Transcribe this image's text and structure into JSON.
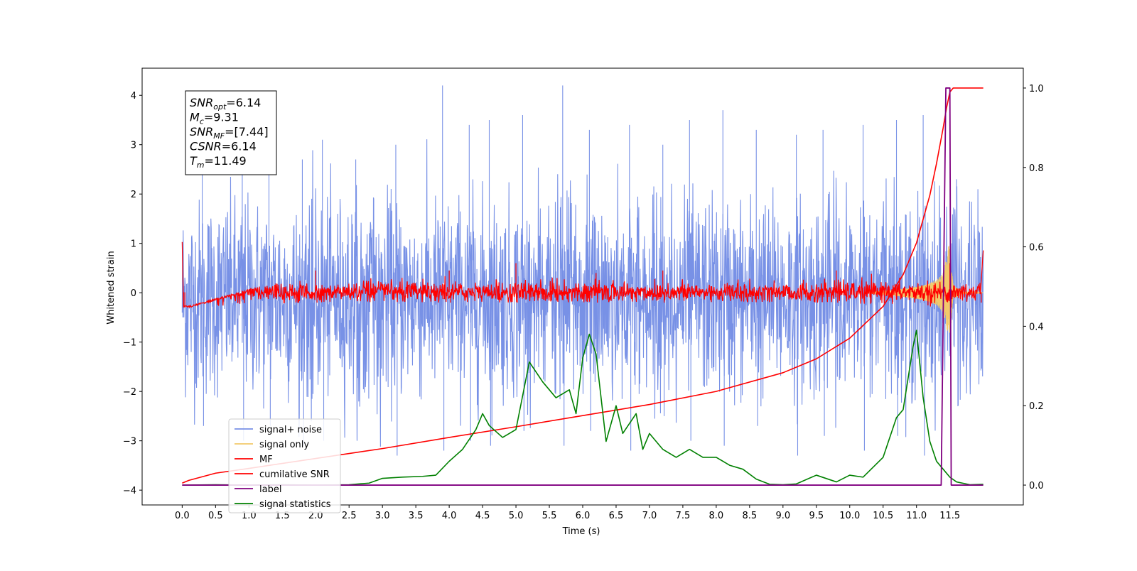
{
  "chart_data": {
    "type": "line",
    "xlabel": "Time (s)",
    "ylabel_left": "Whitened strain",
    "ylabel_right": "",
    "xlim": [
      -0.6,
      12.6
    ],
    "ylim_left": [
      -4.3,
      4.55
    ],
    "ylim_right": [
      -0.05,
      1.05
    ],
    "grid": false,
    "legend_position": "lower-left",
    "x_ticks": [
      0.0,
      0.5,
      1.0,
      1.5,
      2.0,
      2.5,
      3.0,
      3.5,
      4.0,
      4.5,
      5.0,
      5.5,
      6.0,
      6.5,
      7.0,
      7.5,
      8.0,
      8.5,
      9.0,
      9.5,
      10.0,
      10.5,
      11.0,
      11.5
    ],
    "x_tick_labels": [
      "0.0",
      "0.5",
      "1.0",
      "1.5",
      "2.0",
      "2.5",
      "3.0",
      "3.5",
      "4.0",
      "4.5",
      "5.0",
      "5.5",
      "6.0",
      "6.5",
      "7.0",
      "7.5",
      "8.0",
      "8.5",
      "9.0",
      "9.5",
      "10.0",
      "10.5",
      "11.0",
      "11.5"
    ],
    "y_left_ticks": [
      -4,
      -3,
      -2,
      -1,
      0,
      1,
      2,
      3,
      4
    ],
    "y_left_tick_labels": [
      "−4",
      "−3",
      "−2",
      "−1",
      "0",
      "1",
      "2",
      "3",
      "4"
    ],
    "y_right_ticks": [
      0.0,
      0.2,
      0.4,
      0.6,
      0.8,
      1.0
    ],
    "y_right_tick_labels": [
      "0.0",
      "0.2",
      "0.4",
      "0.6",
      "0.8",
      "1.0"
    ],
    "annotation": {
      "lines": [
        {
          "main": "SNR",
          "sub": "opt",
          "value": "=6.14"
        },
        {
          "main": "M",
          "sub": "c",
          "value": "=9.31"
        },
        {
          "main": "SNR",
          "sub": "MF",
          "value": "=[7.44]"
        },
        {
          "main": "CSNR",
          "sub": "",
          "value": "=6.14"
        },
        {
          "main": "T",
          "sub": "m",
          "value": "=11.49"
        }
      ]
    },
    "series": [
      {
        "name": "signal+ noise",
        "axis": "left",
        "color": "#7891e6",
        "render": "noise-band",
        "x_range": [
          0.0,
          12.0
        ],
        "typical_range": [
          -1.5,
          1.3
        ],
        "x": [
          0.3,
          0.9,
          1.3,
          1.8,
          2.1,
          2.6,
          3.2,
          3.9,
          4.3,
          4.6,
          5.1,
          5.7,
          6.1,
          6.7,
          7.2,
          7.6,
          8.1,
          8.6,
          9.2,
          9.6,
          10.2,
          10.7,
          11.1,
          11.6
        ],
        "high": [
          2.7,
          3.4,
          2.8,
          2.7,
          3.1,
          2.7,
          3.0,
          4.2,
          3.4,
          3.5,
          3.6,
          4.2,
          3.3,
          3.4,
          3.0,
          3.5,
          3.7,
          3.3,
          3.2,
          3.3,
          3.4,
          3.5,
          3.6,
          2.3
        ],
        "low": [
          -2.7,
          -3.0,
          -2.7,
          -3.1,
          -3.0,
          -3.0,
          -3.3,
          -3.2,
          -3.0,
          -3.1,
          -2.8,
          -3.1,
          -2.8,
          -3.2,
          -2.5,
          -3.0,
          -3.1,
          -2.7,
          -3.3,
          -2.9,
          -3.2,
          -2.9,
          -3.3,
          -2.3
        ]
      },
      {
        "name": "signal only",
        "axis": "left",
        "color": "#f2c96a",
        "x": [
          10.3,
          10.6,
          10.9,
          11.1,
          11.3,
          11.4,
          11.45,
          11.49,
          11.55,
          11.7,
          12.0
        ],
        "amplitude": [
          0.02,
          0.05,
          0.1,
          0.15,
          0.25,
          0.4,
          0.7,
          1.0,
          0.15,
          0.02,
          0.0
        ]
      },
      {
        "name": "MF",
        "axis": "left",
        "color": "#ff0000",
        "render": "noise-band",
        "x_range": [
          0.0,
          12.0
        ],
        "typical_range": [
          -0.18,
          0.2
        ],
        "x": [
          0.0,
          0.02,
          2.0,
          4.0,
          5.0,
          6.2,
          7.2,
          9.8,
          11.5,
          11.95,
          12.0
        ],
        "high": [
          1.0,
          -0.3,
          0.45,
          0.45,
          0.6,
          0.4,
          0.45,
          0.45,
          0.6,
          0.2,
          0.85
        ],
        "low": [
          1.0,
          -0.3,
          -0.2,
          -0.2,
          -0.2,
          -0.2,
          -0.2,
          -0.2,
          -0.3,
          -0.2,
          0.85
        ]
      },
      {
        "name": "cumilative SNR",
        "axis": "right",
        "color": "#ff0000",
        "x": [
          0.0,
          0.1,
          0.5,
          1.0,
          2.0,
          3.0,
          4.0,
          5.0,
          6.0,
          7.0,
          8.0,
          9.0,
          9.5,
          10.0,
          10.5,
          10.8,
          11.0,
          11.2,
          11.3,
          11.4,
          11.45,
          11.5,
          11.55,
          12.0
        ],
        "values": [
          0.005,
          0.012,
          0.03,
          0.042,
          0.067,
          0.092,
          0.12,
          0.147,
          0.175,
          0.203,
          0.236,
          0.283,
          0.318,
          0.37,
          0.45,
          0.53,
          0.61,
          0.73,
          0.81,
          0.9,
          0.95,
          0.99,
          1.0,
          1.0
        ]
      },
      {
        "name": "label",
        "axis": "right",
        "color": "#800080",
        "x": [
          0.0,
          11.37,
          11.44,
          11.5,
          11.52,
          12.0
        ],
        "values": [
          0.0,
          0.0,
          1.0,
          1.0,
          0.0,
          0.0
        ]
      },
      {
        "name": "signal statistics",
        "axis": "right",
        "color": "#008000",
        "x": [
          0.0,
          0.5,
          1.0,
          1.5,
          2.0,
          2.5,
          2.8,
          3.0,
          3.3,
          3.6,
          3.8,
          4.0,
          4.2,
          4.4,
          4.5,
          4.6,
          4.8,
          5.0,
          5.2,
          5.4,
          5.6,
          5.8,
          5.9,
          6.0,
          6.1,
          6.2,
          6.35,
          6.5,
          6.6,
          6.8,
          6.9,
          7.0,
          7.2,
          7.4,
          7.6,
          7.8,
          8.0,
          8.2,
          8.4,
          8.6,
          8.8,
          9.0,
          9.2,
          9.5,
          9.8,
          10.0,
          10.2,
          10.5,
          10.7,
          10.8,
          10.95,
          11.0,
          11.1,
          11.2,
          11.3,
          11.4,
          11.5,
          11.6,
          11.8,
          12.0
        ],
        "values": [
          0.0,
          0.001,
          0.0,
          0.001,
          0.0,
          0.001,
          0.005,
          0.017,
          0.02,
          0.022,
          0.025,
          0.06,
          0.09,
          0.14,
          0.18,
          0.15,
          0.12,
          0.14,
          0.31,
          0.26,
          0.22,
          0.24,
          0.18,
          0.32,
          0.38,
          0.33,
          0.11,
          0.2,
          0.13,
          0.18,
          0.09,
          0.13,
          0.09,
          0.07,
          0.09,
          0.07,
          0.07,
          0.05,
          0.04,
          0.015,
          0.002,
          0.001,
          0.003,
          0.025,
          0.008,
          0.025,
          0.02,
          0.07,
          0.17,
          0.19,
          0.35,
          0.39,
          0.22,
          0.11,
          0.06,
          0.04,
          0.02,
          0.008,
          0.001,
          0.002
        ]
      }
    ]
  }
}
